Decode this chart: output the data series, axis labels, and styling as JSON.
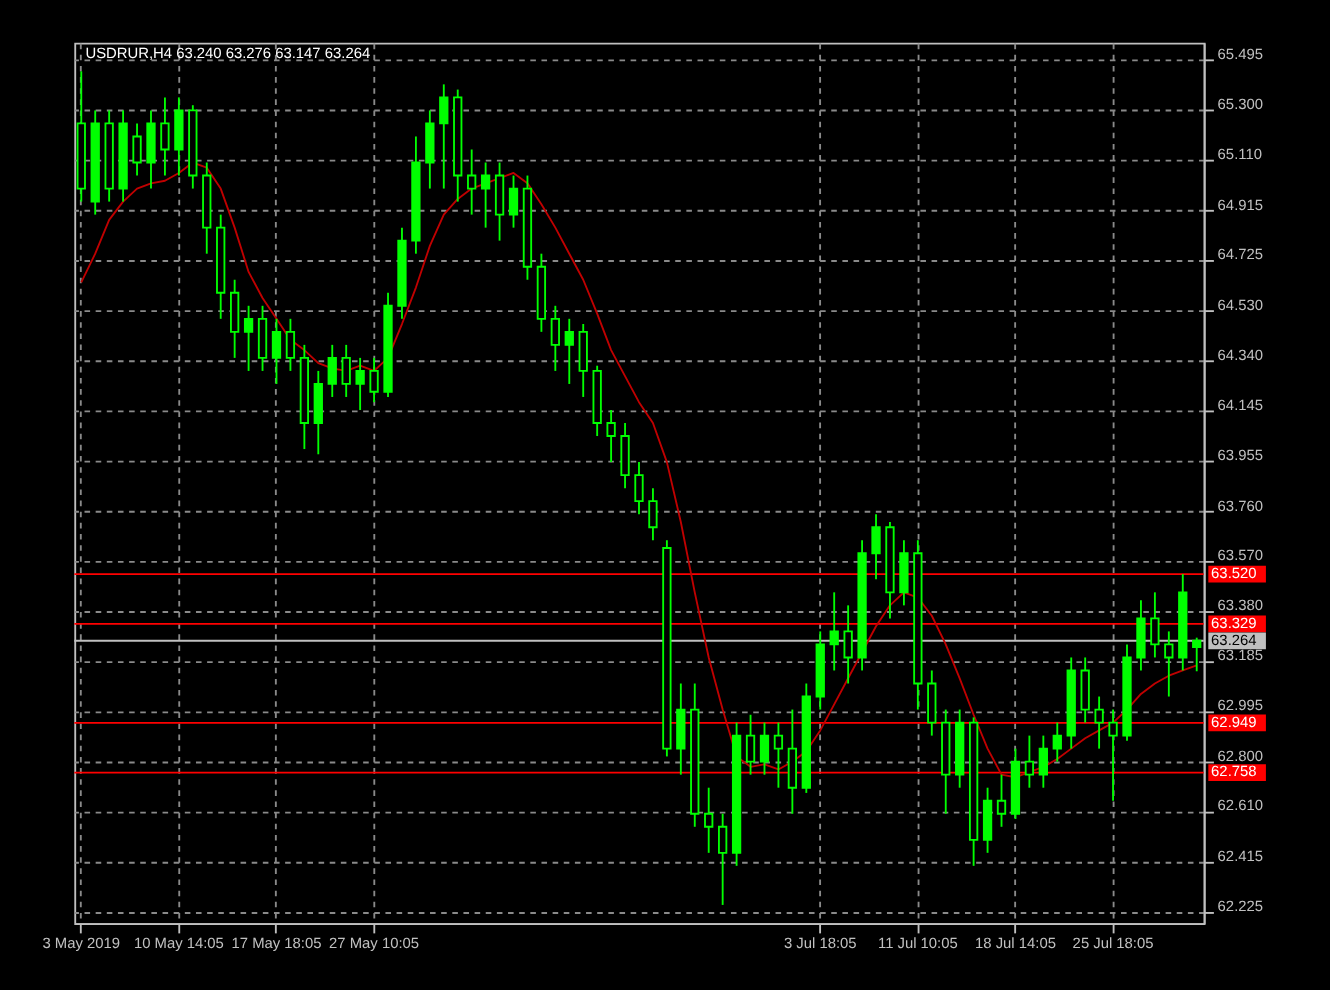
{
  "chart_data": {
    "type": "candlestick",
    "title": "USDRUR,H4  63.240 63.276 63.147 63.264",
    "color": "#00ff00",
    "categories": [
      "3 May 2019",
      null,
      null,
      null,
      null,
      null,
      null,
      "10 May 14:05",
      null,
      null,
      null,
      null,
      null,
      null,
      "17 May 18:05",
      null,
      null,
      null,
      null,
      null,
      null,
      "27 May 10:05",
      null,
      null,
      null,
      null,
      null,
      null,
      null,
      null,
      null,
      null,
      null,
      null,
      null,
      null,
      null,
      null,
      null,
      null,
      null,
      null,
      null,
      null,
      null,
      null,
      null,
      null,
      null,
      null,
      null,
      null,
      null,
      "3 Jul 18:05",
      null,
      null,
      null,
      null,
      null,
      null,
      "11 Jul 10:05",
      null,
      null,
      null,
      null,
      null,
      null,
      "18 Jul 14:05",
      null,
      null,
      null,
      null,
      null,
      null,
      "25 Jul 18:05",
      null,
      null,
      null,
      null,
      null,
      null
    ],
    "ohlc": [
      [
        65.25,
        65.45,
        64.95,
        65.0
      ],
      [
        64.95,
        65.3,
        64.9,
        65.25
      ],
      [
        65.25,
        65.3,
        64.95,
        65.0
      ],
      [
        65.0,
        65.3,
        64.95,
        65.25
      ],
      [
        65.2,
        65.25,
        65.05,
        65.1
      ],
      [
        65.1,
        65.3,
        65.0,
        65.25
      ],
      [
        65.25,
        65.35,
        65.05,
        65.15
      ],
      [
        65.15,
        65.35,
        65.05,
        65.3
      ],
      [
        65.3,
        65.32,
        65.0,
        65.05
      ],
      [
        65.05,
        65.1,
        64.75,
        64.85
      ],
      [
        64.85,
        64.9,
        64.5,
        64.6
      ],
      [
        64.6,
        64.65,
        64.35,
        64.45
      ],
      [
        64.45,
        64.55,
        64.3,
        64.5
      ],
      [
        64.5,
        64.55,
        64.3,
        64.35
      ],
      [
        64.35,
        64.5,
        64.25,
        64.45
      ],
      [
        64.45,
        64.5,
        64.3,
        64.35
      ],
      [
        64.35,
        64.4,
        64.0,
        64.1
      ],
      [
        64.1,
        64.3,
        63.98,
        64.25
      ],
      [
        64.25,
        64.4,
        64.2,
        64.35
      ],
      [
        64.35,
        64.4,
        64.2,
        64.25
      ],
      [
        64.25,
        64.35,
        64.15,
        64.3
      ],
      [
        64.3,
        64.35,
        64.18,
        64.22
      ],
      [
        64.22,
        64.6,
        64.2,
        64.55
      ],
      [
        64.55,
        64.85,
        64.5,
        64.8
      ],
      [
        64.8,
        65.2,
        64.75,
        65.1
      ],
      [
        65.1,
        65.3,
        65.0,
        65.25
      ],
      [
        65.25,
        65.4,
        65.0,
        65.35
      ],
      [
        65.35,
        65.38,
        64.95,
        65.05
      ],
      [
        65.05,
        65.15,
        64.9,
        65.0
      ],
      [
        65.0,
        65.1,
        64.85,
        65.05
      ],
      [
        65.05,
        65.1,
        64.8,
        64.9
      ],
      [
        64.9,
        65.05,
        64.85,
        65.0
      ],
      [
        65.0,
        65.05,
        64.65,
        64.7
      ],
      [
        64.7,
        64.75,
        64.45,
        64.5
      ],
      [
        64.5,
        64.55,
        64.3,
        64.4
      ],
      [
        64.4,
        64.5,
        64.25,
        64.45
      ],
      [
        64.45,
        64.48,
        64.2,
        64.3
      ],
      [
        64.3,
        64.32,
        64.05,
        64.1
      ],
      [
        64.1,
        64.15,
        63.95,
        64.05
      ],
      [
        64.05,
        64.1,
        63.85,
        63.9
      ],
      [
        63.9,
        63.95,
        63.75,
        63.8
      ],
      [
        63.8,
        63.85,
        63.65,
        63.7
      ],
      [
        63.62,
        63.65,
        62.82,
        62.85
      ],
      [
        62.85,
        63.1,
        62.75,
        63.0
      ],
      [
        63.0,
        63.1,
        62.55,
        62.6
      ],
      [
        62.6,
        62.7,
        62.45,
        62.55
      ],
      [
        62.55,
        62.6,
        62.25,
        62.45
      ],
      [
        62.45,
        62.95,
        62.4,
        62.9
      ],
      [
        62.9,
        62.98,
        62.75,
        62.8
      ],
      [
        62.8,
        62.95,
        62.75,
        62.9
      ],
      [
        62.9,
        62.95,
        62.7,
        62.85
      ],
      [
        62.85,
        63.0,
        62.6,
        62.7
      ],
      [
        62.7,
        63.1,
        62.68,
        63.05
      ],
      [
        63.05,
        63.3,
        63.0,
        63.25
      ],
      [
        63.25,
        63.45,
        63.15,
        63.3
      ],
      [
        63.3,
        63.4,
        63.1,
        63.2
      ],
      [
        63.2,
        63.65,
        63.15,
        63.6
      ],
      [
        63.6,
        63.75,
        63.5,
        63.7
      ],
      [
        63.7,
        63.72,
        63.35,
        63.45
      ],
      [
        63.45,
        63.65,
        63.4,
        63.6
      ],
      [
        63.6,
        63.65,
        63.0,
        63.1
      ],
      [
        63.1,
        63.15,
        62.9,
        62.95
      ],
      [
        62.95,
        63.0,
        62.6,
        62.75
      ],
      [
        62.75,
        63.0,
        62.7,
        62.95
      ],
      [
        62.95,
        62.97,
        62.4,
        62.5
      ],
      [
        62.5,
        62.7,
        62.45,
        62.65
      ],
      [
        62.65,
        62.75,
        62.55,
        62.6
      ],
      [
        62.6,
        62.85,
        62.58,
        62.8
      ],
      [
        62.8,
        62.9,
        62.7,
        62.75
      ],
      [
        62.75,
        62.9,
        62.7,
        62.85
      ],
      [
        62.85,
        62.95,
        62.8,
        62.9
      ],
      [
        62.9,
        63.2,
        62.85,
        63.15
      ],
      [
        63.15,
        63.2,
        62.95,
        63.0
      ],
      [
        63.0,
        63.05,
        62.85,
        62.95
      ],
      [
        62.95,
        63.0,
        62.65,
        62.9
      ],
      [
        62.9,
        63.25,
        62.88,
        63.2
      ],
      [
        63.2,
        63.42,
        63.15,
        63.35
      ],
      [
        63.35,
        63.45,
        63.2,
        63.25
      ],
      [
        63.25,
        63.3,
        63.05,
        63.2
      ],
      [
        63.2,
        63.52,
        63.15,
        63.45
      ],
      [
        63.24,
        63.276,
        63.147,
        63.264
      ]
    ],
    "series": [
      {
        "type": "line",
        "color": "#c00000",
        "values": [
          64.64,
          64.75,
          64.88,
          64.95,
          65.0,
          65.02,
          65.03,
          65.06,
          65.1,
          65.08,
          65.0,
          64.85,
          64.68,
          64.58,
          64.5,
          64.42,
          64.38,
          64.33,
          64.31,
          64.3,
          64.32,
          64.3,
          64.35,
          64.48,
          64.62,
          64.78,
          64.9,
          64.96,
          65.0,
          65.02,
          65.04,
          65.06,
          65.02,
          64.94,
          64.85,
          64.75,
          64.65,
          64.52,
          64.38,
          64.28,
          64.18,
          64.1,
          63.95,
          63.72,
          63.45,
          63.2,
          63.0,
          62.82,
          62.78,
          62.79,
          62.77,
          62.8,
          62.84,
          62.92,
          63.02,
          63.12,
          63.22,
          63.32,
          63.4,
          63.45,
          63.43,
          63.36,
          63.25,
          63.12,
          62.98,
          62.85,
          62.75,
          62.74,
          62.76,
          62.78,
          62.81,
          62.85,
          62.89,
          62.92,
          62.95,
          63.0,
          63.06,
          63.1,
          63.13,
          63.15,
          63.17
        ]
      }
    ],
    "ylim": [
      62.18,
      65.56
    ],
    "yticks": [
      62.225,
      62.415,
      {
        "value": 62.61,
        "label": "62.610"
      },
      {
        "value": 62.8,
        "label": "62.800"
      },
      62.995,
      63.185,
      {
        "value": 63.38,
        "label": "63.380"
      },
      {
        "value": 63.57,
        "label": "63.570"
      },
      {
        "value": 63.76,
        "label": "63.760"
      },
      63.955,
      64.145,
      {
        "value": 64.34,
        "label": "64.340"
      },
      {
        "value": 64.53,
        "label": "64.530"
      },
      64.725,
      64.915,
      {
        "value": 65.11,
        "label": "65.110"
      },
      {
        "value": 65.3,
        "label": "65.300"
      },
      65.495
    ],
    "grid": true,
    "ref_lines": [
      {
        "axis": "y",
        "value": 63.52,
        "label": "63.520",
        "color": "#ff0000"
      },
      {
        "axis": "y",
        "value": 63.329,
        "label": "63.329",
        "color": "#ff0000"
      },
      {
        "axis": "y",
        "value": 62.949,
        "label": "62.949",
        "color": "#ff0000"
      },
      {
        "axis": "y",
        "value": 62.758,
        "label": "62.758",
        "color": "#ff0000"
      },
      {
        "axis": "y",
        "value": 63.264,
        "label": "63.264",
        "color": "#c0c0c0"
      }
    ]
  }
}
